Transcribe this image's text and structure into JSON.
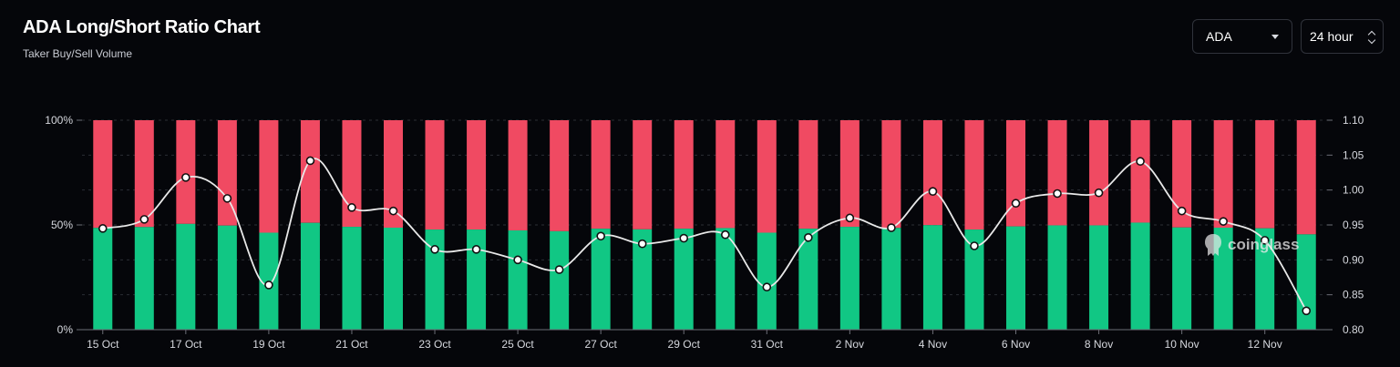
{
  "header": {
    "title": "ADA Long/Short Ratio Chart",
    "subtitle": "Taker Buy/Sell Volume"
  },
  "controls": {
    "symbol": "ADA",
    "period": "24 hour"
  },
  "watermark": "coinglass",
  "colors": {
    "background": "#05060a",
    "long": "#11c784",
    "short": "#f04a62",
    "line": "#e8e8e8"
  },
  "chart_data": {
    "type": "bar",
    "stacked": true,
    "grid": true,
    "categories": [
      "15 Oct",
      "16 Oct",
      "17 Oct",
      "18 Oct",
      "19 Oct",
      "20 Oct",
      "21 Oct",
      "22 Oct",
      "23 Oct",
      "24 Oct",
      "25 Oct",
      "26 Oct",
      "27 Oct",
      "28 Oct",
      "29 Oct",
      "30 Oct",
      "31 Oct",
      "1 Nov",
      "2 Nov",
      "3 Nov",
      "4 Nov",
      "5 Nov",
      "6 Nov",
      "7 Nov",
      "8 Nov",
      "9 Nov",
      "10 Nov",
      "11 Nov",
      "12 Nov",
      "13 Nov"
    ],
    "x_tick_labels": [
      "15 Oct",
      "17 Oct",
      "19 Oct",
      "21 Oct",
      "23 Oct",
      "25 Oct",
      "27 Oct",
      "29 Oct",
      "31 Oct",
      "2 Nov",
      "4 Nov",
      "6 Nov",
      "8 Nov",
      "10 Nov",
      "12 Nov"
    ],
    "series": [
      {
        "values": [
          48.6,
          49.0,
          50.5,
          49.7,
          46.3,
          51.0,
          49.1,
          48.7,
          47.8,
          47.8,
          47.4,
          47.0,
          48.2,
          47.9,
          48.2,
          48.5,
          46.3,
          48.2,
          49.1,
          48.6,
          49.9,
          47.8,
          49.3,
          49.8,
          49.8,
          51.1,
          48.8,
          48.7,
          48.4,
          45.5
        ]
      },
      {
        "values": [
          51.4,
          51.0,
          49.5,
          50.3,
          53.7,
          49.0,
          50.9,
          51.3,
          52.2,
          52.2,
          52.6,
          53.0,
          51.8,
          52.1,
          51.8,
          51.5,
          53.7,
          51.8,
          50.9,
          51.4,
          50.1,
          52.2,
          50.7,
          50.2,
          50.2,
          48.9,
          51.2,
          51.3,
          51.6,
          54.5
        ]
      },
      {
        "axis": "right",
        "values": [
          0.945,
          0.958,
          1.018,
          0.988,
          0.864,
          1.042,
          0.975,
          0.97,
          0.915,
          0.915,
          0.9,
          0.886,
          0.934,
          0.923,
          0.931,
          0.936,
          0.861,
          0.932,
          0.96,
          0.946,
          0.998,
          0.92,
          0.981,
          0.995,
          0.996,
          1.041,
          0.97,
          0.955,
          0.928,
          0.827
        ]
      }
    ],
    "y_left": {
      "ticks": [
        "0%",
        "50%",
        "100%"
      ],
      "range": [
        0,
        100
      ]
    },
    "y_right": {
      "ticks": [
        "0.80",
        "0.85",
        "0.90",
        "0.95",
        "1.00",
        "1.05",
        "1.10"
      ],
      "range": [
        0.8,
        1.1
      ]
    }
  }
}
